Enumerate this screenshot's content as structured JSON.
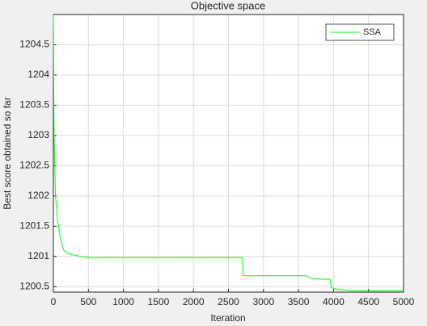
{
  "chart_data": {
    "type": "line",
    "title": "Objective space",
    "x_label": "Iteration",
    "y_label": "Best score obtained so far",
    "x": [
      0,
      10,
      30,
      60,
      100,
      150,
      200,
      300,
      500,
      2700,
      2710,
      3600,
      3700,
      3950,
      3970,
      4100,
      4300,
      5000
    ],
    "series": [
      {
        "name": "SSA",
        "color": "#00ff00",
        "values": [
          1205,
          1203,
          1202,
          1201.6,
          1201.3,
          1201.1,
          1201.05,
          1201.02,
          1200.98,
          1200.98,
          1200.68,
          1200.68,
          1200.63,
          1200.62,
          1200.48,
          1200.45,
          1200.43,
          1200.43
        ]
      }
    ],
    "xlim": [
      0,
      5000
    ],
    "xticks": [
      0,
      500,
      1000,
      1500,
      2000,
      2500,
      3000,
      3500,
      4000,
      4500,
      5000
    ],
    "ylim": [
      1200.41,
      1205
    ],
    "yticks": [
      1200.5,
      1201,
      1201.5,
      1202,
      1202.5,
      1203,
      1203.5,
      1204,
      1204.5
    ],
    "grid": true,
    "legend": "northeast"
  }
}
